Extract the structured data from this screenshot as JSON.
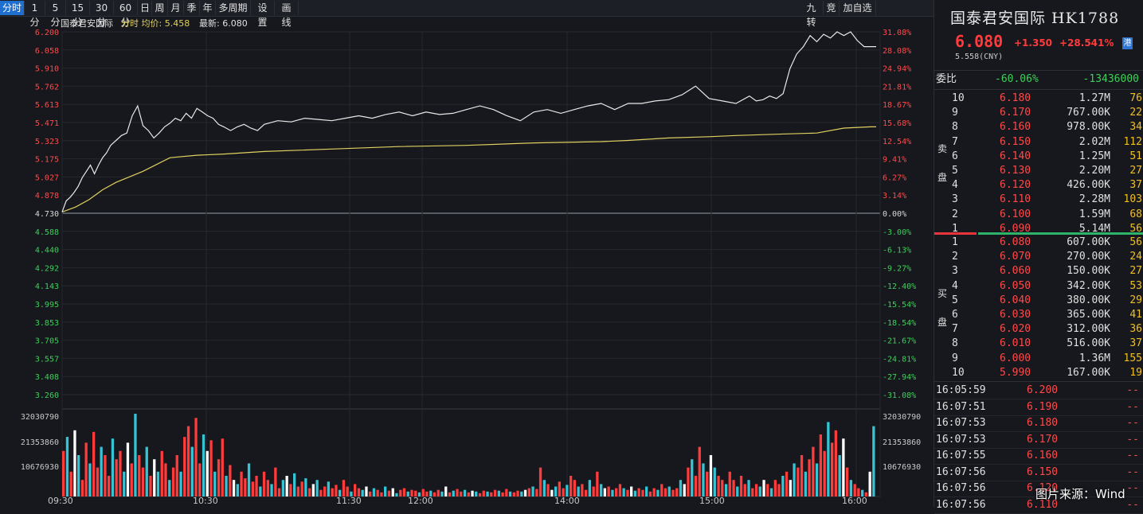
{
  "toolbar": {
    "left_buttons": [
      "分时",
      "1分",
      "5分",
      "15分",
      "30分",
      "60分",
      "日",
      "周",
      "月",
      "季",
      "年",
      "多周期",
      "设置",
      "画线"
    ],
    "active": "分时",
    "right_buttons": [
      "九转",
      "竞",
      "加自选"
    ]
  },
  "chart_header": {
    "name": "国泰君安国际",
    "avg_label": "分时 均价: 5.458",
    "latest_label": "最新: 6.080"
  },
  "chart_data": {
    "type": "line",
    "price_ticks": [
      "6.200",
      "6.058",
      "5.910",
      "5.762",
      "5.613",
      "5.471",
      "5.323",
      "5.175",
      "5.027",
      "4.878",
      "4.730",
      "4.588",
      "4.440",
      "4.292",
      "4.143",
      "3.995",
      "3.853",
      "3.705",
      "3.557",
      "3.408",
      "3.260"
    ],
    "pct_ticks": [
      "31.08%",
      "28.08%",
      "24.94%",
      "21.81%",
      "18.67%",
      "15.68%",
      "12.54%",
      "9.41%",
      "6.27%",
      "3.14%",
      "0.00%",
      "-3.00%",
      "-6.13%",
      "-9.27%",
      "-12.40%",
      "-15.54%",
      "-18.54%",
      "-21.67%",
      "-24.81%",
      "-27.94%",
      "-31.08%"
    ],
    "volume_ticks": [
      "32030790",
      "21353860",
      "10676930"
    ],
    "time_labels": [
      "09:30",
      "10:30",
      "11:30",
      "12:00",
      "14:00",
      "15:00",
      "16:00"
    ],
    "ylim": [
      3.26,
      6.2
    ],
    "prev_close": 4.73,
    "price_series": {
      "x": [
        0,
        3,
        6,
        9,
        12,
        15,
        18,
        21,
        24,
        27,
        30,
        33,
        36,
        40,
        44,
        48,
        52,
        56,
        60,
        64,
        68,
        72,
        76,
        80,
        84,
        88,
        92,
        96,
        100,
        104,
        108,
        112,
        116,
        120,
        125,
        130,
        135,
        140,
        145,
        150,
        160,
        170,
        180,
        190,
        200,
        210,
        220,
        230,
        240,
        250,
        260,
        270,
        280,
        290,
        300,
        310,
        320,
        330,
        340,
        350,
        360,
        370,
        380,
        390,
        400,
        410,
        420,
        430,
        440,
        450,
        460,
        470,
        480,
        490,
        500,
        510,
        515,
        520,
        525,
        530,
        535,
        540,
        545,
        550,
        555,
        560,
        565,
        570,
        575,
        580,
        585,
        590,
        595,
        600,
        604
      ],
      "y": [
        4.74,
        4.83,
        4.86,
        4.9,
        4.95,
        5.02,
        5.07,
        5.12,
        5.05,
        5.12,
        5.18,
        5.22,
        5.28,
        5.32,
        5.36,
        5.38,
        5.52,
        5.6,
        5.44,
        5.4,
        5.34,
        5.38,
        5.43,
        5.46,
        5.5,
        5.48,
        5.54,
        5.5,
        5.58,
        5.55,
        5.52,
        5.5,
        5.45,
        5.43,
        5.4,
        5.43,
        5.45,
        5.42,
        5.4,
        5.45,
        5.48,
        5.47,
        5.5,
        5.49,
        5.48,
        5.5,
        5.52,
        5.5,
        5.53,
        5.55,
        5.52,
        5.55,
        5.53,
        5.54,
        5.57,
        5.6,
        5.57,
        5.52,
        5.48,
        5.55,
        5.57,
        5.54,
        5.57,
        5.6,
        5.62,
        5.57,
        5.62,
        5.62,
        5.64,
        5.65,
        5.69,
        5.76,
        5.66,
        5.64,
        5.62,
        5.68,
        5.64,
        5.65,
        5.68,
        5.66,
        5.7,
        5.9,
        6.02,
        6.08,
        6.17,
        6.12,
        6.18,
        6.15,
        6.2,
        6.17,
        6.2,
        6.13,
        6.08,
        6.08,
        6.08
      ]
    },
    "avg_series": {
      "x": [
        0,
        10,
        20,
        30,
        40,
        60,
        80,
        100,
        120,
        150,
        200,
        250,
        300,
        350,
        400,
        420,
        450,
        480,
        500,
        530,
        560,
        580,
        600,
        604
      ],
      "y": [
        4.74,
        4.78,
        4.84,
        4.92,
        4.98,
        5.07,
        5.18,
        5.2,
        5.21,
        5.23,
        5.25,
        5.27,
        5.28,
        5.3,
        5.31,
        5.32,
        5.34,
        5.35,
        5.36,
        5.37,
        5.38,
        5.42,
        5.43,
        5.43
      ]
    },
    "volume_values": [
      0.55,
      0.72,
      0.3,
      0.8,
      0.5,
      0.2,
      0.65,
      0.4,
      0.78,
      0.35,
      0.6,
      0.5,
      0.25,
      0.7,
      0.45,
      0.55,
      0.3,
      0.65,
      0.4,
      1.0,
      0.5,
      0.35,
      0.6,
      0.25,
      0.45,
      0.3,
      0.55,
      0.4,
      0.2,
      0.35,
      0.5,
      0.3,
      0.72,
      0.85,
      0.6,
      0.95,
      0.4,
      0.75,
      0.55,
      0.68,
      0.3,
      0.45,
      0.7,
      0.25,
      0.38,
      0.2,
      0.15,
      0.3,
      0.22,
      0.4,
      0.18,
      0.25,
      0.12,
      0.3,
      0.2,
      0.15,
      0.35,
      0.1,
      0.2,
      0.25,
      0.15,
      0.28,
      0.12,
      0.18,
      0.22,
      0.1,
      0.15,
      0.2,
      0.08,
      0.12,
      0.18,
      0.1,
      0.14,
      0.08,
      0.2,
      0.12,
      0.06,
      0.15,
      0.1,
      0.08,
      0.12,
      0.06,
      0.1,
      0.08,
      0.05,
      0.12,
      0.07,
      0.1,
      0.04,
      0.08,
      0.1,
      0.06,
      0.08,
      0.07,
      0.05,
      0.09,
      0.06,
      0.07,
      0.05,
      0.08,
      0.06,
      0.12,
      0.05,
      0.07,
      0.09,
      0.06,
      0.08,
      0.05,
      0.07,
      0.06,
      0.04,
      0.07,
      0.06,
      0.05,
      0.08,
      0.07,
      0.05,
      0.09,
      0.06,
      0.05,
      0.07,
      0.06,
      0.08,
      0.1,
      0.12,
      0.09,
      0.35,
      0.2,
      0.15,
      0.08,
      0.12,
      0.18,
      0.1,
      0.14,
      0.25,
      0.2,
      0.12,
      0.15,
      0.08,
      0.2,
      0.12,
      0.3,
      0.15,
      0.1,
      0.12,
      0.08,
      0.1,
      0.15,
      0.1,
      0.08,
      0.12,
      0.07,
      0.1,
      0.08,
      0.12,
      0.06,
      0.1,
      0.08,
      0.15,
      0.1,
      0.12,
      0.08,
      0.1,
      0.2,
      0.15,
      0.35,
      0.45,
      0.25,
      0.6,
      0.4,
      0.3,
      0.5,
      0.35,
      0.25,
      0.2,
      0.15,
      0.3,
      0.2,
      0.12,
      0.25,
      0.15,
      0.2,
      0.1,
      0.15,
      0.12,
      0.2,
      0.15,
      0.1,
      0.2,
      0.15,
      0.25,
      0.3,
      0.2,
      0.4,
      0.35,
      0.5,
      0.3,
      0.45,
      0.6,
      0.4,
      0.75,
      0.55,
      0.9,
      0.65,
      0.8,
      0.5,
      0.7,
      0.35,
      0.2,
      0.15,
      0.1,
      0.08,
      0.05,
      0.3,
      0.85
    ],
    "price_color": "#e8e8e8",
    "avg_color": "#e0d060",
    "up_color": "#ff3b3b",
    "down_color": "#36c4d4"
  },
  "quote": {
    "title": "国泰君安国际 HK1788",
    "last": "6.080",
    "change": "+1.350",
    "change_pct": "+28.541%",
    "market": "港",
    "cny": "5.558(CNY)"
  },
  "order_ratio": {
    "label": "委比",
    "pct": "-60.06%",
    "diff": "-13436000"
  },
  "sell_label": [
    "卖",
    "盘"
  ],
  "buy_label": [
    "买",
    "盘"
  ],
  "asks": [
    {
      "level": "10",
      "price": "6.180",
      "vol": "1.27M",
      "count": "76"
    },
    {
      "level": "9",
      "price": "6.170",
      "vol": "767.00K",
      "count": "22"
    },
    {
      "level": "8",
      "price": "6.160",
      "vol": "978.00K",
      "count": "34"
    },
    {
      "level": "7",
      "price": "6.150",
      "vol": "2.02M",
      "count": "112"
    },
    {
      "level": "6",
      "price": "6.140",
      "vol": "1.25M",
      "count": "51"
    },
    {
      "level": "5",
      "price": "6.130",
      "vol": "2.20M",
      "count": "27"
    },
    {
      "level": "4",
      "price": "6.120",
      "vol": "426.00K",
      "count": "37"
    },
    {
      "level": "3",
      "price": "6.110",
      "vol": "2.28M",
      "count": "103"
    },
    {
      "level": "2",
      "price": "6.100",
      "vol": "1.59M",
      "count": "68"
    },
    {
      "level": "1",
      "price": "6.090",
      "vol": "5.14M",
      "count": "56"
    }
  ],
  "bids": [
    {
      "level": "1",
      "price": "6.080",
      "vol": "607.00K",
      "count": "56"
    },
    {
      "level": "2",
      "price": "6.070",
      "vol": "270.00K",
      "count": "24"
    },
    {
      "level": "3",
      "price": "6.060",
      "vol": "150.00K",
      "count": "27"
    },
    {
      "level": "4",
      "price": "6.050",
      "vol": "342.00K",
      "count": "53"
    },
    {
      "level": "5",
      "price": "6.040",
      "vol": "380.00K",
      "count": "29"
    },
    {
      "level": "6",
      "price": "6.030",
      "vol": "365.00K",
      "count": "41"
    },
    {
      "level": "7",
      "price": "6.020",
      "vol": "312.00K",
      "count": "36"
    },
    {
      "level": "8",
      "price": "6.010",
      "vol": "516.00K",
      "count": "37"
    },
    {
      "level": "9",
      "price": "6.000",
      "vol": "1.36M",
      "count": "155"
    },
    {
      "level": "10",
      "price": "5.990",
      "vol": "167.00K",
      "count": "19"
    }
  ],
  "trades": [
    {
      "time": "16:05:59",
      "price": "6.200",
      "vol": "--"
    },
    {
      "time": "16:07:51",
      "price": "6.190",
      "vol": "--"
    },
    {
      "time": "16:07:53",
      "price": "6.180",
      "vol": "--"
    },
    {
      "time": "16:07:53",
      "price": "6.170",
      "vol": "--"
    },
    {
      "time": "16:07:55",
      "price": "6.160",
      "vol": "--"
    },
    {
      "time": "16:07:56",
      "price": "6.150",
      "vol": "--"
    },
    {
      "time": "16:07:56",
      "price": "6.120",
      "vol": "--"
    },
    {
      "time": "16:07:56",
      "price": "6.110",
      "vol": "--"
    }
  ],
  "watermark": "图片来源：Wind"
}
